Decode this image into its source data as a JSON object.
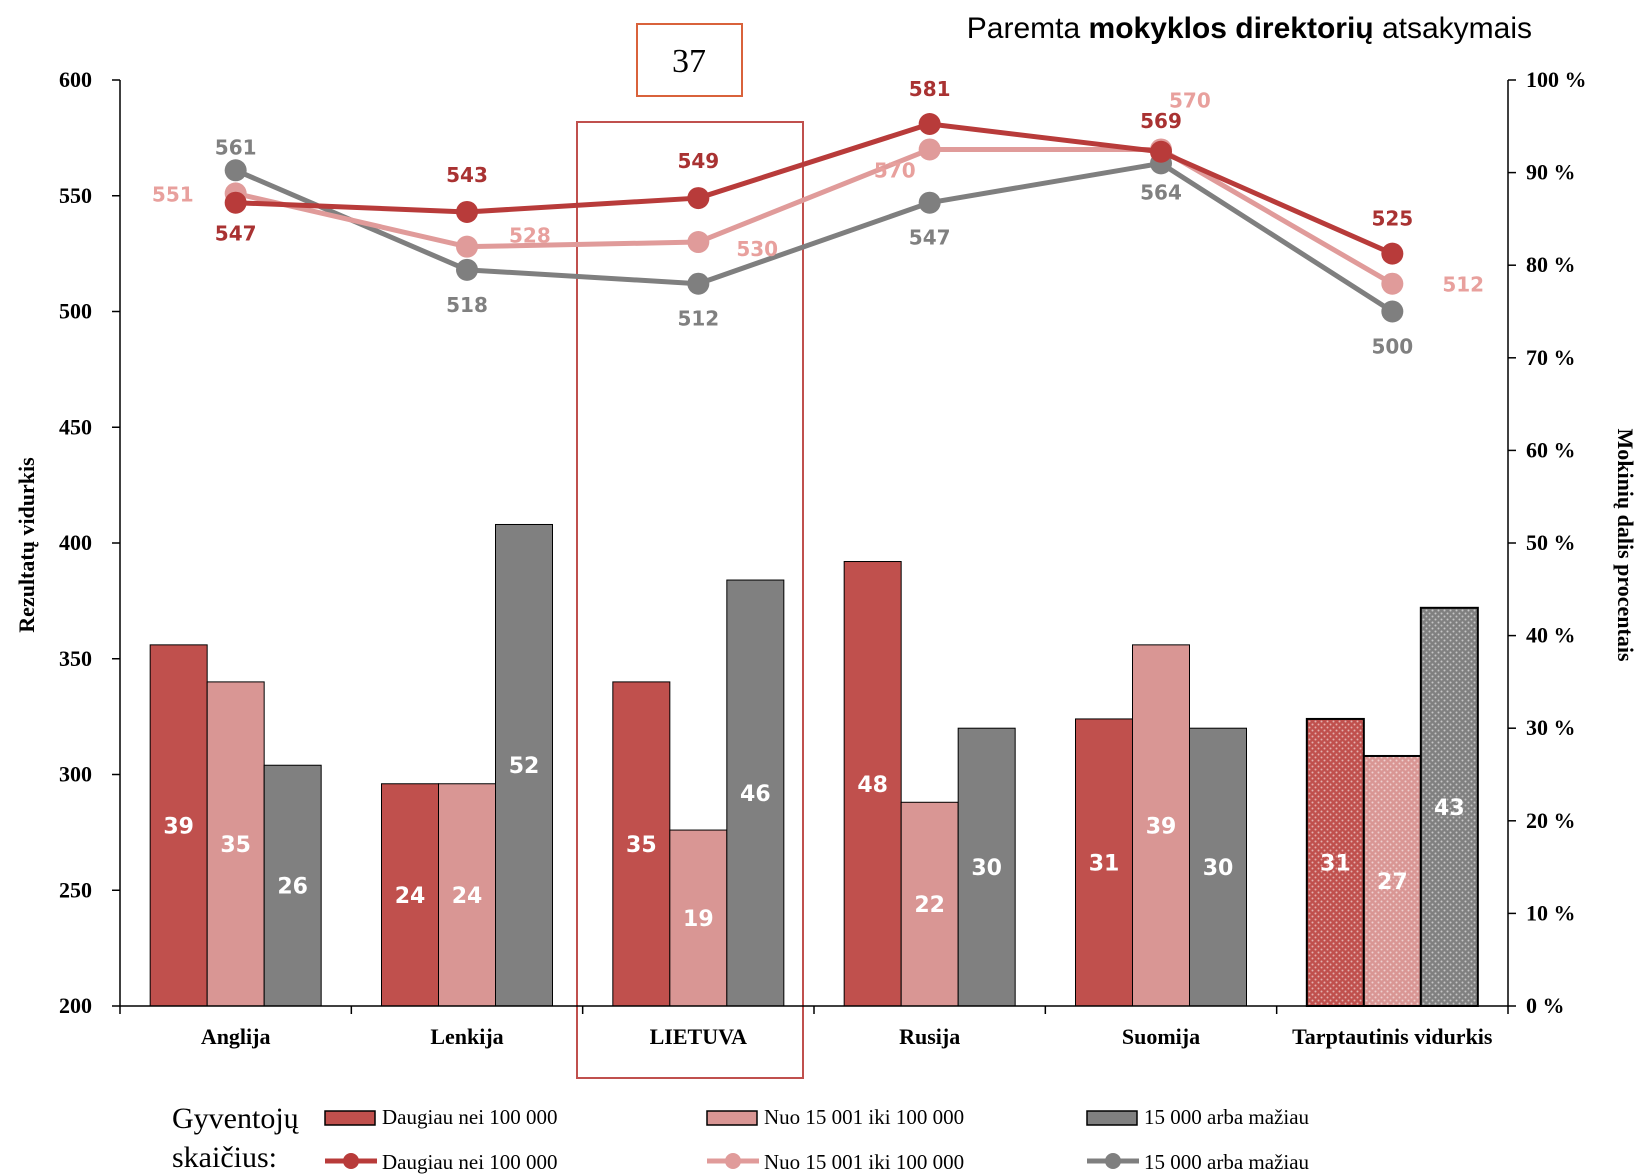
{
  "header_note": {
    "prefix": "Paremta ",
    "bold": "mokyklos direktorių",
    "suffix": " atsakymais"
  },
  "page_number": "37",
  "legend": {
    "title_line1": "Gyventojų",
    "title_line2": "skaičius:",
    "bar_entries": [
      "Daugiau nei 100 000",
      "Nuo 15 001 iki 100 000",
      "15 000 arba mažiau"
    ],
    "line_entries": [
      "Daugiau nei 100 000",
      "Nuo 15 001 iki 100 000",
      "15 000 arba mažiau"
    ]
  },
  "colors": {
    "dark_red": "#c0504d",
    "line_dark_red": "#b83b3a",
    "label_dark_red": "#a93232",
    "pink": "#d99694",
    "line_pink": "#e09b9a",
    "label_pink": "#e8a09d",
    "gray": "#808080",
    "line_gray": "#7f7f7f",
    "highlight": "#c0504d",
    "page_box": "#d9623b"
  },
  "chart_data": {
    "type": "bar",
    "categories": [
      "Anglija",
      "Lenkija",
      "LIETUVA",
      "Rusija",
      "Suomija",
      "Tarptautinis vidurkis"
    ],
    "highlight_category": "LIETUVA",
    "pattern_category": "Tarptautinis vidurkis",
    "left_axis": {
      "label": "Rezultatų vidurkis",
      "ylim": [
        200,
        600
      ],
      "ticks": [
        "200",
        "250",
        "300",
        "350",
        "400",
        "450",
        "500",
        "550",
        "600"
      ]
    },
    "right_axis": {
      "label": "Mokinių dalis procentais",
      "ylim": [
        0,
        100
      ],
      "ticks": [
        "0 %",
        "10 %",
        "20 %",
        "30 %",
        "40 %",
        "50 %",
        "60 %",
        "70 %",
        "80 %",
        "90 %",
        "100 %"
      ]
    },
    "bars": [
      {
        "name": "Daugiau nei 100 000",
        "values": [
          39,
          24,
          35,
          48,
          31,
          31
        ]
      },
      {
        "name": "Nuo 15 001 iki 100 000",
        "values": [
          35,
          24,
          19,
          22,
          39,
          27
        ]
      },
      {
        "name": "15 000 arba mažiau",
        "values": [
          26,
          52,
          46,
          30,
          30,
          43
        ]
      }
    ],
    "lines": [
      {
        "name": "Daugiau nei 100 000",
        "values": [
          547,
          543,
          549,
          581,
          569,
          525
        ]
      },
      {
        "name": "Nuo 15 001 iki 100 000",
        "values": [
          551,
          528,
          530,
          570,
          570,
          512
        ]
      },
      {
        "name": "15 000 arba mažiau",
        "values": [
          561,
          518,
          512,
          547,
          564,
          500
        ]
      }
    ],
    "grid": false,
    "legend_position": "bottom"
  }
}
